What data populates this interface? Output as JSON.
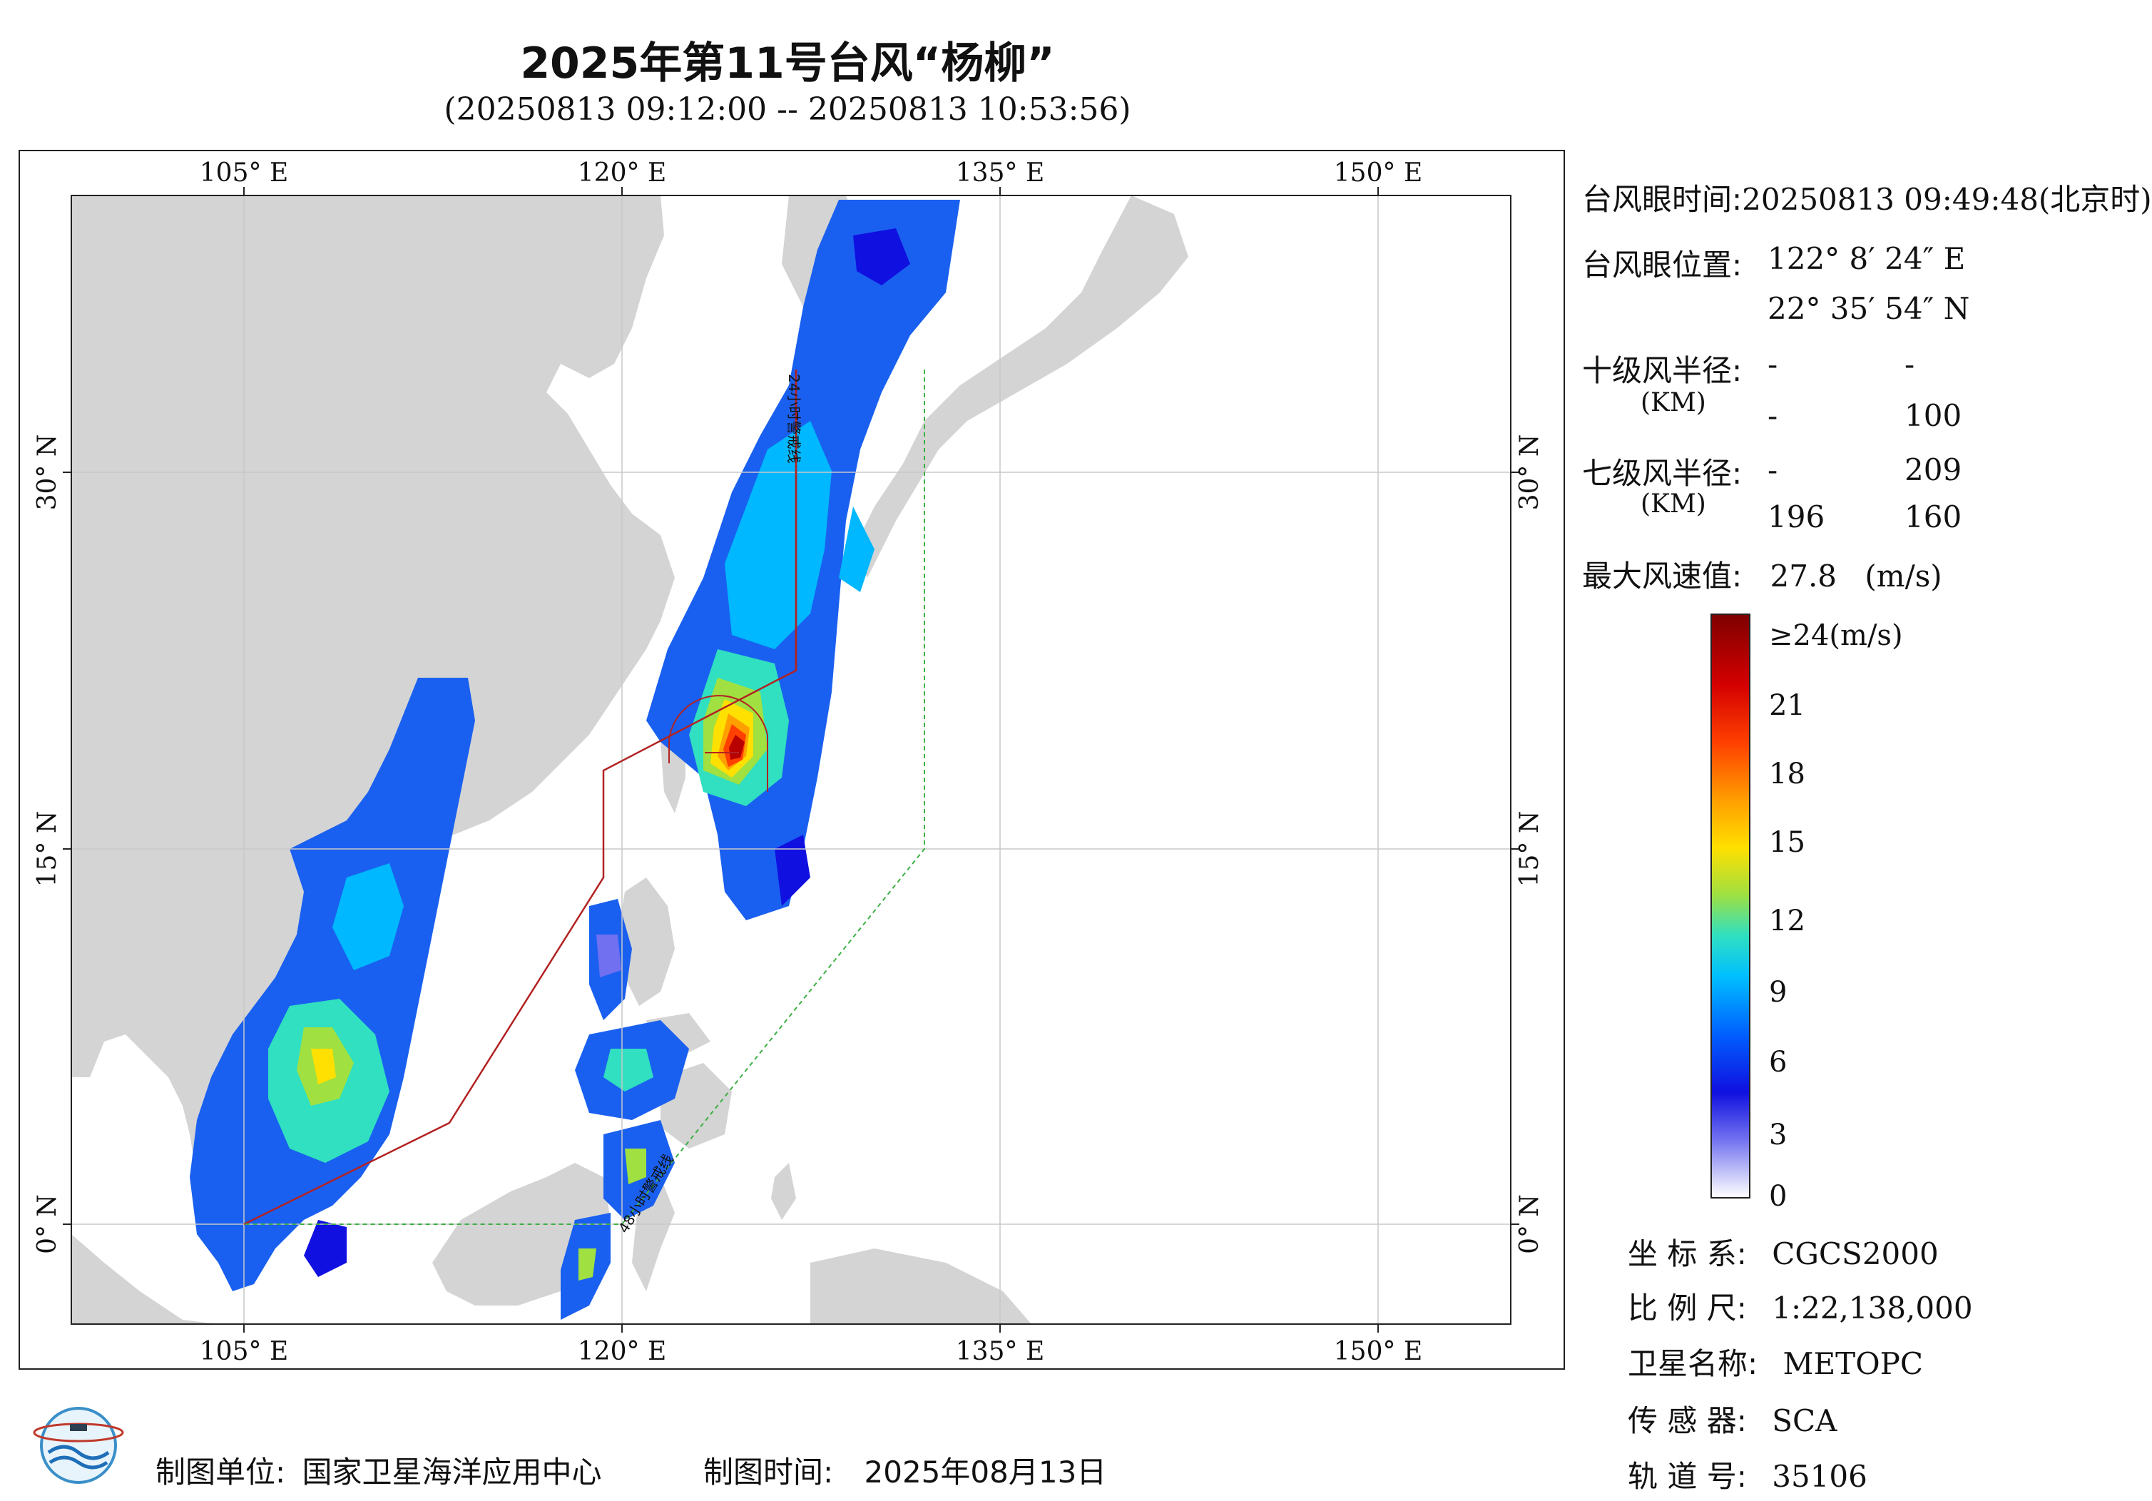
{
  "header": {
    "title": "2025年第11号台风“杨柳”",
    "time_range": "(20250813 09:12:00 -- 20250813 10:53:56)"
  },
  "map": {
    "lon_labels": [
      "105° E",
      "120° E",
      "135° E",
      "150° E"
    ],
    "lat_labels": [
      "30° N",
      "15° N",
      "0° N"
    ],
    "warning_line_24h": "24小时警戒线",
    "warning_line_48h": "48小时警戒线",
    "colors": {
      "land": "#d4d4d4",
      "sea": "#ffffff",
      "warning_24h": "#b22222",
      "warning_48h": "#3cb043"
    }
  },
  "typhoon_info": {
    "eye_time_label": "台风眼时间:",
    "eye_time_value": "20250813 09:49:48(北京时)",
    "eye_position_label": "台风眼位置:",
    "eye_lon": "122° 8′ 24″ E",
    "eye_lat": "22° 35′ 54″ N",
    "level10_label": "十级风半径:",
    "level10_unit": "(KM)",
    "level10_values": [
      "-",
      "-",
      "-",
      "100"
    ],
    "level7_label": "七级风半径:",
    "level7_unit": "(KM)",
    "level7_values": [
      "-",
      "209",
      "196",
      "160"
    ],
    "max_wind_label": "最大风速值:",
    "max_wind_value": "27.8",
    "max_wind_unit": "(m/s)"
  },
  "colorbar": {
    "labels": [
      "≥24(m/s)",
      "21",
      "18",
      "15",
      "12",
      "9",
      "6",
      "3",
      "0"
    ],
    "colors": [
      "#7f0000",
      "#d40000",
      "#ff4000",
      "#ffa000",
      "#ffe000",
      "#a0e040",
      "#30e0c0",
      "#00c0ff",
      "#0060ff",
      "#1010e0",
      "#7070f0",
      "#ffffff"
    ]
  },
  "metadata": {
    "crs_label": "坐 标 系:",
    "crs_value": "CGCS2000",
    "scale_label": "比 例 尺:",
    "scale_value": "1:22,138,000",
    "satellite_label": "卫星名称:",
    "satellite_value": "METOPC",
    "sensor_label": "传 感 器:",
    "sensor_value": "SCA",
    "orbit_label": "轨 道 号:",
    "orbit_value": "35106"
  },
  "footer": {
    "producer_label": "制图单位:",
    "producer_value": "国家卫星海洋应用中心",
    "date_label": "制图时间:",
    "date_value": "2025年08月13日"
  }
}
